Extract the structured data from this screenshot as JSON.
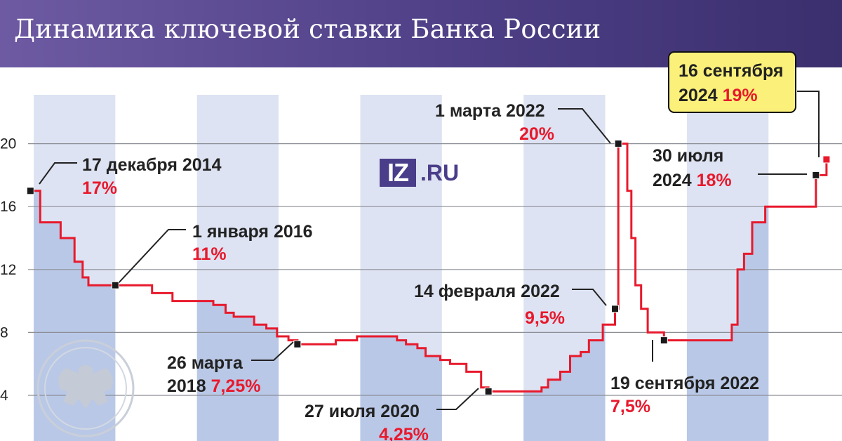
{
  "title": "Динамика ключевой ставки Банка России",
  "logo": {
    "iz": "IZ",
    "ru": ".RU"
  },
  "colors": {
    "line": "#e8192c",
    "header": "#4e3f86",
    "band": "#dde3f2",
    "band_fill": "#b9c8e6",
    "highlight": "#fbf17a"
  },
  "chart_data": {
    "type": "line",
    "step": true,
    "title": "Динамика ключевой ставки Банка России",
    "ylabel": "",
    "xlabel": "",
    "ylim": [
      2,
      23
    ],
    "yticks": [
      4,
      8,
      12,
      16,
      20
    ],
    "grid": true,
    "x_start": 2015.0,
    "x_end": 2024.9,
    "series": [
      {
        "points": [
          [
            2014.96,
            17
          ],
          [
            2015.08,
            15
          ],
          [
            2015.33,
            14
          ],
          [
            2015.5,
            12.5
          ],
          [
            2015.6,
            11.5
          ],
          [
            2015.67,
            11
          ],
          [
            2016.0,
            11
          ],
          [
            2016.45,
            10.5
          ],
          [
            2016.7,
            10
          ],
          [
            2017.2,
            9.75
          ],
          [
            2017.35,
            9.25
          ],
          [
            2017.45,
            9.0
          ],
          [
            2017.7,
            8.5
          ],
          [
            2017.85,
            8.25
          ],
          [
            2017.98,
            7.75
          ],
          [
            2018.12,
            7.5
          ],
          [
            2018.23,
            7.25
          ],
          [
            2018.7,
            7.5
          ],
          [
            2018.96,
            7.75
          ],
          [
            2019.45,
            7.5
          ],
          [
            2019.56,
            7.25
          ],
          [
            2019.7,
            7.0
          ],
          [
            2019.8,
            6.5
          ],
          [
            2019.98,
            6.25
          ],
          [
            2020.1,
            6.0
          ],
          [
            2020.3,
            5.5
          ],
          [
            2020.48,
            4.5
          ],
          [
            2020.57,
            4.25
          ],
          [
            2021.22,
            4.5
          ],
          [
            2021.3,
            5.0
          ],
          [
            2021.45,
            5.5
          ],
          [
            2021.57,
            6.5
          ],
          [
            2021.7,
            6.75
          ],
          [
            2021.8,
            7.5
          ],
          [
            2021.97,
            8.5
          ],
          [
            2022.12,
            9.5
          ],
          [
            2022.16,
            20
          ],
          [
            2022.27,
            17
          ],
          [
            2022.32,
            14
          ],
          [
            2022.37,
            11
          ],
          [
            2022.44,
            9.5
          ],
          [
            2022.52,
            8.0
          ],
          [
            2022.72,
            7.5
          ],
          [
            2023.55,
            8.5
          ],
          [
            2023.62,
            12
          ],
          [
            2023.7,
            13
          ],
          [
            2023.8,
            15
          ],
          [
            2023.96,
            16
          ],
          [
            2024.58,
            18
          ],
          [
            2024.71,
            19
          ]
        ]
      }
    ],
    "annotations": [
      {
        "date": "17 декабря 2014",
        "value": "17%"
      },
      {
        "date": "1 января 2016",
        "value": "11%"
      },
      {
        "date": "26 марта",
        "date2": "2018",
        "value": "7,25%"
      },
      {
        "date": "27 июля 2020",
        "value": "4,25%"
      },
      {
        "date": "14 февраля 2022",
        "value": "9,5%"
      },
      {
        "date": "1 марта 2022",
        "value": "20%"
      },
      {
        "date": "19 сентября 2022",
        "value": "7,5%"
      },
      {
        "date": "30 июля",
        "date2": "2024",
        "value": "18%"
      },
      {
        "date": "16 сентября",
        "date2": "2024",
        "value": "19%"
      }
    ]
  }
}
